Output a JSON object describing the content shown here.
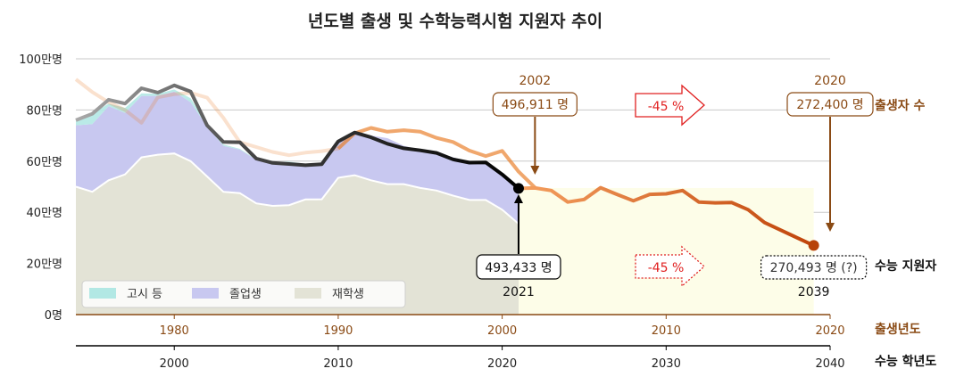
{
  "chart_data": {
    "type": "area",
    "title": "년도별 출생 및 수학능력시험 지원자 추이",
    "y_ticks": [
      "0명",
      "20만명",
      "40만명",
      "60만명",
      "80만명",
      "100만명"
    ],
    "ylim": [
      0,
      1000000
    ],
    "grid": true,
    "birth_axis": {
      "label": "출생년도",
      "range": [
        1974,
        2020
      ],
      "ticks": [
        "1980",
        "1990",
        "2000",
        "2010",
        "2020"
      ]
    },
    "exam_axis": {
      "label": "수능 학년도",
      "range": [
        1994,
        2040
      ],
      "ticks": [
        "2000",
        "2010",
        "2020",
        "2030",
        "2040"
      ]
    },
    "legend": {
      "placement": "bottom-left",
      "items": [
        {
          "name": "고시 등",
          "color": "#b2e8e4"
        },
        {
          "name": "졸업생",
          "color": "#c8c8f0"
        },
        {
          "name": "재학생",
          "color": "#e3e3d6"
        }
      ]
    },
    "exam_years": [
      1994,
      1995,
      1996,
      1997,
      1998,
      1999,
      2000,
      2001,
      2002,
      2003,
      2004,
      2005,
      2006,
      2007,
      2008,
      2009,
      2010,
      2011,
      2012,
      2013,
      2014,
      2015,
      2016,
      2017,
      2018,
      2019,
      2020,
      2021
    ],
    "series": [
      {
        "name": "재학생",
        "values": [
          500000,
          480000,
          525000,
          548000,
          615000,
          625000,
          630000,
          600000,
          540000,
          480000,
          475000,
          435000,
          425000,
          428000,
          450000,
          451000,
          535000,
          545000,
          525000,
          510000,
          510000,
          495000,
          485000,
          465000,
          448000,
          448000,
          410000,
          355000
        ]
      },
      {
        "name": "졸업생",
        "values": [
          240000,
          265000,
          290000,
          240000,
          240000,
          230000,
          242000,
          230000,
          195000,
          180000,
          170000,
          170000,
          170000,
          165000,
          140000,
          135000,
          140000,
          165000,
          175000,
          180000,
          150000,
          150000,
          150000,
          150000,
          150000,
          150000,
          135000,
          135000
        ]
      },
      {
        "name": "고시 등",
        "values": [
          20000,
          40000,
          10000,
          20000,
          10000,
          8000,
          8000,
          16000,
          5000,
          5000,
          3000,
          2000,
          2000,
          5000,
          0,
          0,
          0,
          0,
          0,
          0,
          0,
          0,
          0,
          0,
          0,
          0,
          0,
          0
        ]
      }
    ],
    "applicants_total": {
      "name": "수능 지원자",
      "label": "수능 지원자",
      "values": [
        760000,
        785000,
        840000,
        825000,
        885000,
        868000,
        896000,
        872000,
        740000,
        675000,
        674000,
        610000,
        593000,
        589000,
        584000,
        588000,
        677000,
        712000,
        693000,
        668000,
        650000,
        642000,
        632000,
        607000,
        594000,
        595000,
        548000,
        493433
      ]
    },
    "projected_applicants": {
      "years": [
        2021,
        2022,
        2023,
        2024,
        2025,
        2026,
        2027,
        2028,
        2029,
        2030,
        2031,
        2032,
        2033,
        2034,
        2035,
        2036,
        2037,
        2038,
        2039
      ],
      "values": [
        493433,
        495000,
        485000,
        440000,
        450000,
        496000,
        470000,
        445000,
        470000,
        472000,
        485000,
        440000,
        437000,
        438000,
        410000,
        360000,
        330000,
        300000,
        270493
      ]
    },
    "births": {
      "name": "출생자 수",
      "label": "출생자 수",
      "years": [
        1974,
        1975,
        1976,
        1977,
        1978,
        1979,
        1980,
        1981,
        1982,
        1983,
        1984,
        1985,
        1986,
        1987,
        1988,
        1989,
        1990,
        1991,
        1992,
        1993,
        1994,
        1995,
        1996,
        1997,
        1998,
        1999,
        2000,
        2001,
        2002
      ],
      "values": [
        920000,
        870000,
        830000,
        800000,
        750000,
        850000,
        862000,
        867000,
        848000,
        769000,
        674000,
        655000,
        636000,
        623000,
        633000,
        639000,
        649000,
        709000,
        730000,
        715000,
        721000,
        715000,
        691000,
        675000,
        641000,
        620000,
        640000,
        559000,
        496911
      ]
    },
    "annotations": [
      {
        "id": "births_2002",
        "year_text": "2002",
        "value_text": "496,911 명"
      },
      {
        "id": "births_2020",
        "year_text": "2020",
        "value_text": "272,400 명"
      },
      {
        "id": "applicants_2021",
        "year_text": "2021",
        "value_text": "493,433 명"
      },
      {
        "id": "applicants_2039",
        "year_text": "2039",
        "value_text": "270,493 명 (?)"
      },
      {
        "id": "decline_births",
        "text": "-45 %"
      },
      {
        "id": "decline_applicants",
        "text": "-45 %"
      }
    ],
    "colors": {
      "births_line": "#e8781e",
      "applicants_line": "#111111",
      "projection_line": "#d3570f",
      "decline_red": "#e02020",
      "brown": "#8a4a14",
      "projection_fill": "#fdfde8"
    }
  }
}
